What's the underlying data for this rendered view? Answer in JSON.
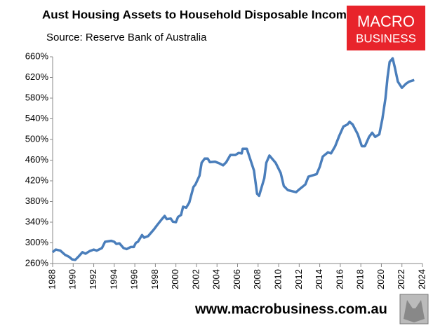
{
  "chart_data": {
    "type": "line",
    "title": "Aust Housing Assets to Household Disposable Income",
    "subtitle": "Source: Reserve Bank of Australia",
    "logo": [
      "MACRO",
      "BUSINESS"
    ],
    "footer": "www.macrobusiness.com.au",
    "xlim": [
      1988,
      2024
    ],
    "xticks": [
      1988,
      1990,
      1992,
      1994,
      1996,
      1998,
      2000,
      2002,
      2004,
      2006,
      2008,
      2010,
      2012,
      2014,
      2016,
      2018,
      2020,
      2022,
      2024
    ],
    "ylim": [
      260,
      660
    ],
    "yticks": [
      {
        "value": 260,
        "label": "260%"
      },
      {
        "value": 300,
        "label": "300%"
      },
      {
        "value": 340,
        "label": "340%"
      },
      {
        "value": 380,
        "label": "380%"
      },
      {
        "value": 420,
        "label": "420%"
      },
      {
        "value": 460,
        "label": "460%"
      },
      {
        "value": 500,
        "label": "500%"
      },
      {
        "value": 540,
        "label": "540%"
      },
      {
        "value": 580,
        "label": "580%"
      },
      {
        "value": 620,
        "label": "620%"
      },
      {
        "value": 660,
        "label": "660%"
      }
    ],
    "grid": false,
    "series": [
      {
        "color": "#4a7ebb",
        "x": [
          1988.0,
          1988.3,
          1988.75,
          1989.2,
          1989.6,
          1989.9,
          1990.2,
          1990.5,
          1990.9,
          1991.2,
          1991.6,
          1992.0,
          1992.3,
          1992.8,
          1993.1,
          1993.7,
          1994.0,
          1994.2,
          1994.5,
          1994.9,
          1995.2,
          1995.6,
          1995.9,
          1996.1,
          1996.3,
          1996.7,
          1996.9,
          1997.3,
          1997.6,
          1997.9,
          1998.2,
          1998.6,
          1998.9,
          1999.1,
          1999.5,
          1999.7,
          2000.0,
          2000.2,
          2000.5,
          2000.7,
          2001.0,
          2001.3,
          2001.7,
          2001.9,
          2002.3,
          2002.5,
          2002.8,
          2003.1,
          2003.3,
          2003.8,
          2004.2,
          2004.6,
          2004.9,
          2005.3,
          2005.8,
          2006.1,
          2006.4,
          2006.5,
          2006.9,
          2007.6,
          2007.9,
          2008.1,
          2008.6,
          2008.8,
          2009.1,
          2009.7,
          2010.2,
          2010.5,
          2010.9,
          2011.7,
          2012.1,
          2012.6,
          2012.9,
          2013.7,
          2014.0,
          2014.3,
          2014.8,
          2015.1,
          2015.5,
          2015.9,
          2016.3,
          2016.7,
          2016.9,
          2017.2,
          2017.7,
          2018.1,
          2018.4,
          2018.8,
          2019.1,
          2019.4,
          2019.8,
          2020.1,
          2020.4,
          2020.6,
          2020.8,
          2021.1,
          2021.3,
          2021.6,
          2022.0,
          2022.4,
          2022.7,
          2023.2
        ],
        "values": [
          282,
          287,
          285,
          277,
          273,
          268,
          267,
          273,
          282,
          279,
          284,
          287,
          285,
          290,
          302,
          304,
          302,
          298,
          299,
          290,
          288,
          292,
          292,
          300,
          302,
          315,
          310,
          313,
          320,
          327,
          335,
          345,
          352,
          346,
          347,
          341,
          340,
          350,
          354,
          370,
          368,
          378,
          408,
          413,
          430,
          455,
          463,
          463,
          456,
          457,
          454,
          450,
          456,
          470,
          470,
          474,
          473,
          482,
          482,
          440,
          395,
          391,
          425,
          455,
          469,
          455,
          435,
          410,
          402,
          398,
          405,
          413,
          428,
          433,
          447,
          467,
          475,
          473,
          487,
          507,
          525,
          529,
          534,
          529,
          510,
          487,
          487,
          505,
          513,
          505,
          510,
          540,
          580,
          620,
          650,
          657,
          640,
          612,
          600,
          608,
          612,
          615
        ]
      }
    ]
  }
}
